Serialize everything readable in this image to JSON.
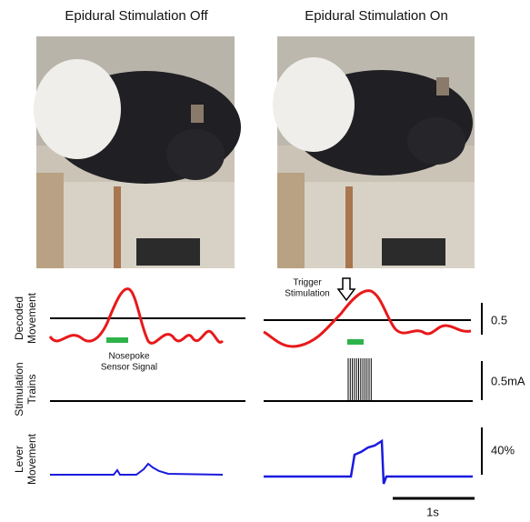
{
  "panels": [
    {
      "title": "Epidural Stimulation Off"
    },
    {
      "title": "Epidural Stimulation On"
    }
  ],
  "rows": [
    {
      "label": [
        "Decoded",
        "Movement"
      ]
    },
    {
      "label": [
        "Stimulation",
        "Trains"
      ]
    },
    {
      "label": [
        "Lever",
        "Movement"
      ]
    }
  ],
  "annotations": {
    "nosepoke": [
      "Nosepoke",
      "Sensor Signal"
    ],
    "trigger": [
      "Trigger",
      "Stimulation"
    ]
  },
  "scale_bars": {
    "decoded": "0.5",
    "stimulation": "0.5mA",
    "lever": "40%",
    "time": "1s"
  }
}
